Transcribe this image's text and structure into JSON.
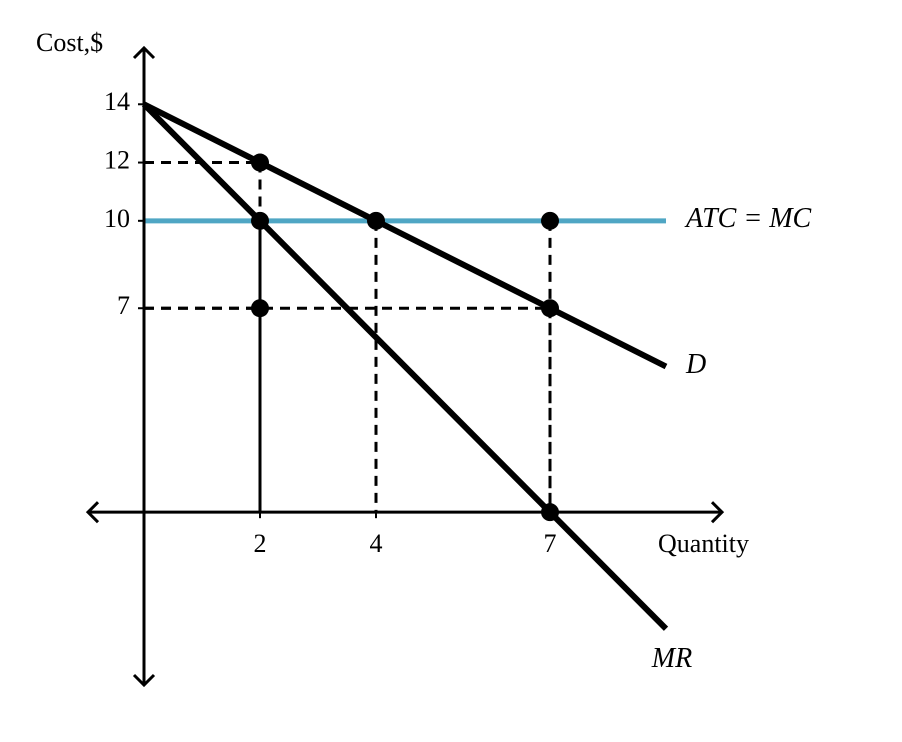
{
  "chart_data": {
    "type": "line",
    "x_label": "Quantity",
    "y_label": "Cost,$",
    "xlim": [
      -1,
      10
    ],
    "ylim": [
      -6,
      16
    ],
    "xticks": [
      2,
      4,
      7
    ],
    "yticks": [
      7,
      10,
      12,
      14
    ],
    "series": [
      {
        "name": "ATC = MC",
        "color": "#4fa6c4",
        "x": [
          0,
          9
        ],
        "values": [
          10,
          10
        ]
      },
      {
        "name": "D",
        "color": "#000000",
        "x": [
          0,
          9
        ],
        "values": [
          14,
          5
        ]
      },
      {
        "name": "MR",
        "color": "#000000",
        "x": [
          0,
          9
        ],
        "values": [
          14,
          -4
        ]
      }
    ],
    "points": {
      "x": [
        2,
        2,
        4,
        7,
        2,
        7,
        7
      ],
      "y": [
        12,
        10,
        10,
        10,
        7,
        7,
        0
      ]
    }
  }
}
